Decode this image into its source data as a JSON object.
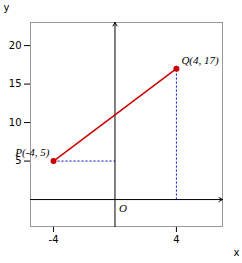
{
  "chart_data": {
    "type": "line",
    "x": [
      -4,
      4
    ],
    "values": [
      5,
      17
    ],
    "color": "#cc0000",
    "marker": "circle",
    "line_style": "solid",
    "point_labels": [
      "P(-4, 5)",
      "Q(4, 17)"
    ],
    "origin_label": "O",
    "drop_lines": {
      "color": "#0000cc",
      "line_style": "dotted",
      "segments": [
        {
          "x1": -4,
          "y1": 5,
          "x2": 0,
          "y2": 5
        },
        {
          "x1": 4,
          "y1": 0,
          "x2": 4,
          "y2": 17
        }
      ]
    },
    "xlabel": "x",
    "ylabel": "y",
    "xlim": [
      -5.5,
      7.0
    ],
    "ylim": [
      -3.5,
      23.0
    ],
    "xticks": [
      -4,
      4
    ],
    "yticks": [
      5,
      10,
      15,
      20
    ],
    "grid": false
  }
}
